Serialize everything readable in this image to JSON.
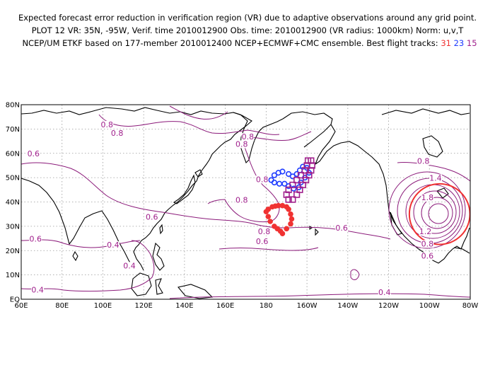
{
  "header": {
    "line1": "Expected forecast error reduction in verification region (VR) due to adaptive observations around any grid point.",
    "line2": "PLOT 12 VR: 35N, -95W, Verif. time 2010012900 Obs. time: 2010012900 (VR radius: 1000km) Norm: u,v,T",
    "line3_prefix": "NCEP/UM ETKF based on 177-member 2010012400 NCEP+ECMWF+CMC ensemble. Best flight tracks:",
    "track_red": "31",
    "track_blue": "23",
    "track_purple": "15"
  },
  "map": {
    "lon_labels": [
      "60E",
      "80E",
      "100E",
      "120E",
      "140E",
      "160E",
      "180",
      "160W",
      "140W",
      "120W",
      "100W",
      "80W"
    ],
    "lat_labels": [
      "EQ",
      "10N",
      "20N",
      "30N",
      "40N",
      "50N",
      "60N",
      "70N",
      "80N"
    ],
    "lon_range": [
      60,
      280
    ],
    "lat_range": [
      0,
      80
    ],
    "verification_region": {
      "lat": 35,
      "lon": -95,
      "radius_km": 1000
    },
    "contour_labels": [
      {
        "text": "0.8",
        "lat": 71,
        "lon": 102
      },
      {
        "text": "0.8",
        "lat": 67.5,
        "lon": 107
      },
      {
        "text": "0.8",
        "lat": 66,
        "lon": 171
      },
      {
        "text": "0.8",
        "lat": 63,
        "lon": 168
      },
      {
        "text": "0.6",
        "lat": 59,
        "lon": 66
      },
      {
        "text": "0.8",
        "lat": 48.5,
        "lon": 178
      },
      {
        "text": "0.8",
        "lat": 40,
        "lon": 168
      },
      {
        "text": "0.6",
        "lat": 33,
        "lon": 124
      },
      {
        "text": "0.8",
        "lat": 27,
        "lon": 179
      },
      {
        "text": "0.6",
        "lat": 28.5,
        "lon": 217
      },
      {
        "text": "0.6",
        "lat": 23,
        "lon": 178
      },
      {
        "text": "0.6",
        "lat": 24,
        "lon": 67
      },
      {
        "text": "0.4",
        "lat": 21.5,
        "lon": 105
      },
      {
        "text": "0.4",
        "lat": 13,
        "lon": 113
      },
      {
        "text": "0.4",
        "lat": 3,
        "lon": 68
      },
      {
        "text": "0.4",
        "lat": 2,
        "lon": 238
      },
      {
        "text": "0.8",
        "lat": 56,
        "lon": 257
      },
      {
        "text": "1.4",
        "lat": 49,
        "lon": 263
      },
      {
        "text": "1.8",
        "lat": 41,
        "lon": 259
      },
      {
        "text": "1.2",
        "lat": 27,
        "lon": 258
      },
      {
        "text": "0.8",
        "lat": 22,
        "lon": 259
      },
      {
        "text": "0.6",
        "lat": 17,
        "lon": 259
      }
    ],
    "track_colors": {
      "red": "#f03232",
      "blue": "#1e3cff",
      "purple": "#a0208c"
    },
    "tracks": {
      "red": [
        [
          38,
          183
        ],
        [
          37,
          181
        ],
        [
          36,
          180
        ],
        [
          34,
          181
        ],
        [
          32,
          182
        ],
        [
          30,
          184
        ],
        [
          29,
          185.5
        ],
        [
          28,
          187
        ],
        [
          27,
          188
        ],
        [
          29,
          190
        ],
        [
          31,
          192
        ],
        [
          33,
          192.5
        ],
        [
          35,
          192
        ],
        [
          37,
          191
        ],
        [
          38,
          190
        ],
        [
          38.5,
          188
        ],
        [
          38.5,
          186
        ],
        [
          38.3,
          184.5
        ]
      ],
      "blue": [
        [
          49,
          182.5
        ],
        [
          51,
          184
        ],
        [
          52,
          186
        ],
        [
          52.5,
          188
        ],
        [
          51.5,
          191
        ],
        [
          50.5,
          193
        ],
        [
          51.5,
          195
        ],
        [
          53,
          196.5
        ],
        [
          54.5,
          198
        ],
        [
          54,
          200
        ],
        [
          52,
          201
        ],
        [
          50,
          199
        ],
        [
          48,
          197
        ],
        [
          46,
          196
        ],
        [
          45.5,
          193.5
        ],
        [
          46.5,
          191
        ],
        [
          47.5,
          189
        ],
        [
          47.5,
          186.5
        ],
        [
          48,
          184
        ]
      ],
      "purple": [
        [
          55,
          200
        ],
        [
          53,
          199
        ],
        [
          51,
          197
        ],
        [
          49,
          195
        ],
        [
          47,
          193
        ],
        [
          45,
          191
        ],
        [
          43,
          190
        ],
        [
          41,
          191
        ],
        [
          41,
          193
        ],
        [
          43,
          195
        ],
        [
          45,
          196.5
        ],
        [
          47,
          198
        ],
        [
          49,
          199.5
        ],
        [
          51,
          201
        ],
        [
          53,
          202
        ],
        [
          55,
          202.5
        ],
        [
          57,
          202
        ],
        [
          57,
          200.5
        ]
      ]
    }
  }
}
